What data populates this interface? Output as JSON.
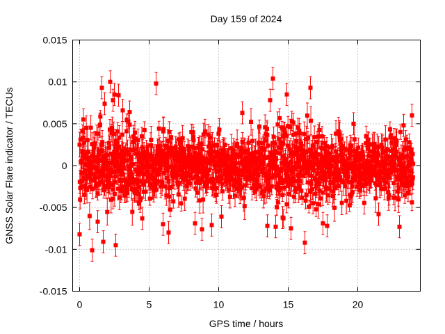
{
  "chart_data": {
    "type": "scatter",
    "title": "Day 159 of 2024",
    "xlabel": "GPS time / hours",
    "ylabel": "GNSS Solar Flare indicator / TECUs",
    "xlim": [
      -0.5,
      24.5
    ],
    "ylim": [
      -0.015,
      0.015
    ],
    "x_ticks": [
      0,
      5,
      10,
      15,
      20
    ],
    "y_ticks": [
      -0.015,
      -0.01,
      -0.005,
      0,
      0.005,
      0.01,
      0.015
    ],
    "x_tick_labels": [
      "0",
      "5",
      "10",
      "15",
      "20"
    ],
    "y_tick_labels": [
      "-0.015",
      "-0.01",
      "-0.005",
      "0",
      "0.005",
      "0.01",
      "0.015"
    ],
    "grid": true,
    "marker": "square",
    "error_bars": true,
    "series_color": "#ff0000",
    "series": [
      {
        "sampling": "continuous, one point approx. every 30 s from 0 to 24 h",
        "typical_spread": 0.0025,
        "typical_error_bar": 0.0012,
        "points": [
          {
            "x": 0.0,
            "y": -0.0082
          },
          {
            "x": 0.9,
            "y": -0.0101
          },
          {
            "x": 1.3,
            "y": -0.0067
          },
          {
            "x": 1.6,
            "y": 0.0093
          },
          {
            "x": 1.7,
            "y": -0.0091
          },
          {
            "x": 1.8,
            "y": 0.0074
          },
          {
            "x": 2.2,
            "y": 0.01
          },
          {
            "x": 2.4,
            "y": 0.0078
          },
          {
            "x": 2.5,
            "y": 0.0085
          },
          {
            "x": 2.6,
            "y": -0.0095
          },
          {
            "x": 2.8,
            "y": 0.0084
          },
          {
            "x": 3.1,
            "y": 0.0066
          },
          {
            "x": 3.6,
            "y": 0.0064
          },
          {
            "x": 4.5,
            "y": -0.0063
          },
          {
            "x": 5.5,
            "y": 0.0098
          },
          {
            "x": 6.0,
            "y": -0.007
          },
          {
            "x": 6.4,
            "y": -0.008
          },
          {
            "x": 8.3,
            "y": -0.0069
          },
          {
            "x": 8.8,
            "y": -0.0076
          },
          {
            "x": 9.5,
            "y": -0.0071
          },
          {
            "x": 10.2,
            "y": -0.0061
          },
          {
            "x": 11.7,
            "y": 0.0063
          },
          {
            "x": 13.5,
            "y": -0.0072
          },
          {
            "x": 13.7,
            "y": 0.0078
          },
          {
            "x": 13.9,
            "y": 0.0104
          },
          {
            "x": 14.1,
            "y": -0.0073
          },
          {
            "x": 14.6,
            "y": -0.0062
          },
          {
            "x": 14.9,
            "y": 0.0085
          },
          {
            "x": 15.2,
            "y": -0.0075
          },
          {
            "x": 16.2,
            "y": -0.0092
          },
          {
            "x": 16.6,
            "y": 0.0093
          },
          {
            "x": 17.5,
            "y": -0.0069
          },
          {
            "x": 17.8,
            "y": -0.0072
          },
          {
            "x": 19.7,
            "y": 0.005
          },
          {
            "x": 21.5,
            "y": -0.0058
          },
          {
            "x": 23.0,
            "y": -0.0073
          },
          {
            "x": 23.3,
            "y": 0.0048
          },
          {
            "x": 23.9,
            "y": 0.006
          }
        ]
      }
    ]
  }
}
